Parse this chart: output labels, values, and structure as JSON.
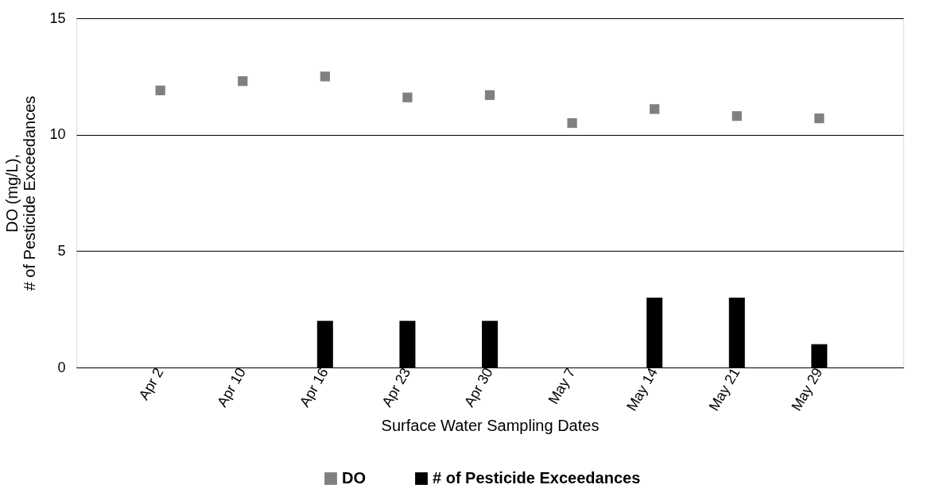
{
  "chart_data": {
    "type": "bar",
    "xlabel": "Surface Water Sampling Dates",
    "ylabel": "DO (mg/L),\n# of Pesticide Exceedances",
    "categories": [
      "Apr 2",
      "Apr 10",
      "Apr 16",
      "Apr 23",
      "Apr 30",
      "May 7",
      "May 14",
      "May 21",
      "May 29"
    ],
    "series": [
      {
        "name": "DO",
        "type": "scatter",
        "marker": "square",
        "color": "#808080",
        "values": [
          11.9,
          12.3,
          12.5,
          11.6,
          11.7,
          10.5,
          11.1,
          10.8,
          10.7
        ]
      },
      {
        "name": "# of Pesticide Exceedances",
        "color": "#000000",
        "values": [
          0,
          0,
          2,
          2,
          2,
          0,
          3,
          3,
          1
        ]
      }
    ],
    "ylim": [
      0,
      15
    ],
    "yticks": [
      0,
      5,
      10,
      15
    ],
    "grid": "y",
    "legend": "bottom"
  }
}
